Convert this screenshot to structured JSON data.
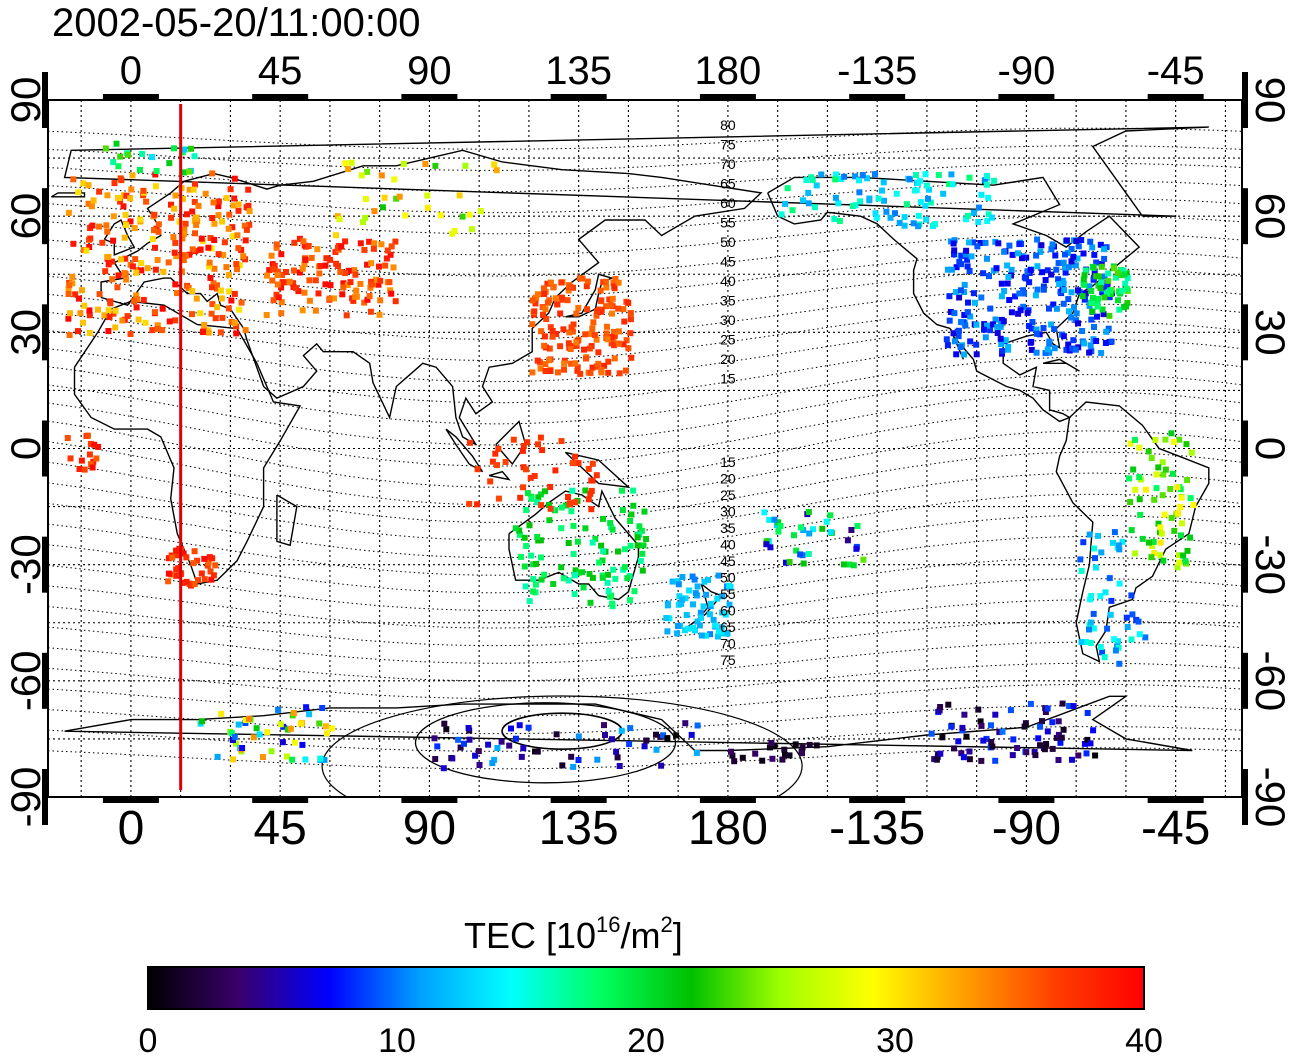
{
  "title": "2002-05-20/11:00:00",
  "map": {
    "lon_ticks": [
      "0",
      "45",
      "90",
      "135",
      "180",
      "-135",
      "-90",
      "-45"
    ],
    "lat_ticks": [
      "90",
      "60",
      "30",
      "0",
      "-30",
      "-60",
      "-90"
    ],
    "lon_range": [
      -25,
      335
    ],
    "lat_range": [
      -90,
      90
    ],
    "meridian_marker_lon": 15,
    "marker_color": "#e00000",
    "contour_labels_north": [
      "80",
      "75",
      "70",
      "65",
      "60",
      "55",
      "50",
      "45",
      "40",
      "35",
      "30",
      "25",
      "20",
      "15"
    ],
    "contour_labels_south": [
      "15",
      "20",
      "25",
      "30",
      "35",
      "40",
      "45",
      "50",
      "55",
      "60",
      "65",
      "70",
      "75"
    ]
  },
  "colorbar": {
    "label": "TEC  [10",
    "label_sup1": "16",
    "label_mid": "/m",
    "label_sup2": "2",
    "label_end": "]",
    "ticks": [
      "0",
      "10",
      "20",
      "30",
      "40"
    ],
    "range": [
      0,
      40
    ],
    "colors": [
      "#000000",
      "#3a006b",
      "#0000ff",
      "#00a0ff",
      "#00ffff",
      "#00ff60",
      "#00c000",
      "#a0ff00",
      "#ffff00",
      "#ffa000",
      "#ff4000",
      "#ff0000"
    ]
  }
}
